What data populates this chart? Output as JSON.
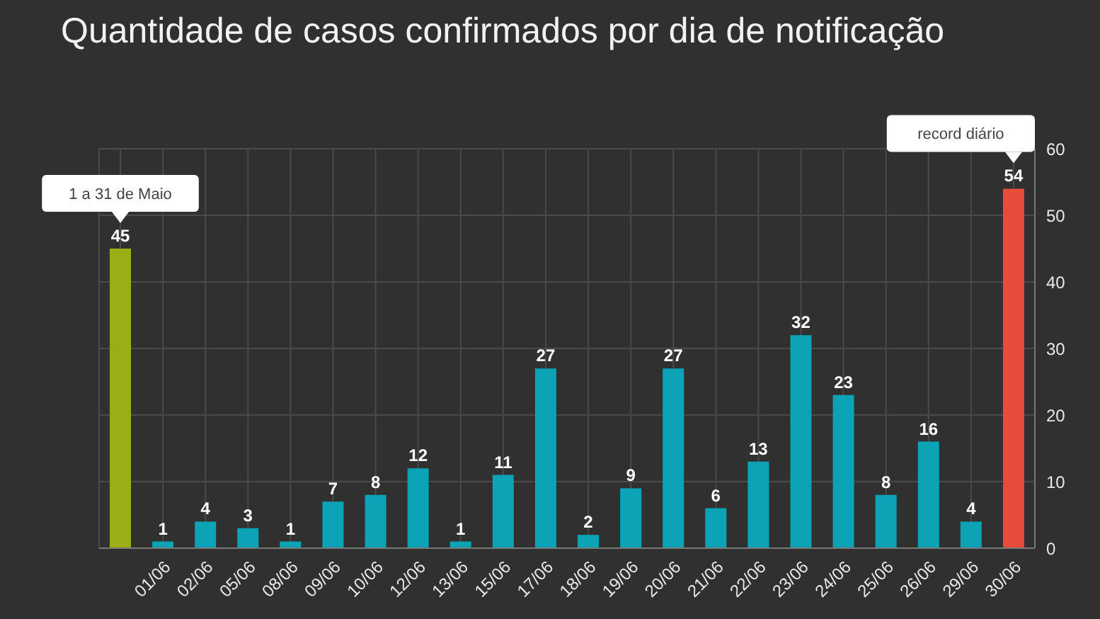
{
  "chart_data": {
    "type": "bar",
    "title": "Quantidade de casos confirmados por dia de notificação",
    "categories": [
      null,
      "01/06",
      "02/06",
      "05/06",
      "08/06",
      "09/06",
      "10/06",
      "12/06",
      "13/06",
      "15/06",
      "17/06",
      "18/06",
      "19/06",
      "20/06",
      "21/06",
      "22/06",
      "23/06",
      "24/06",
      "25/06",
      "26/06",
      "29/06",
      "30/06"
    ],
    "values": [
      45,
      1,
      4,
      3,
      1,
      7,
      8,
      12,
      1,
      11,
      27,
      2,
      9,
      27,
      6,
      13,
      32,
      23,
      8,
      16,
      4,
      54
    ],
    "colors": [
      "#9aae16",
      "#0ba3b5",
      "#0ba3b5",
      "#0ba3b5",
      "#0ba3b5",
      "#0ba3b5",
      "#0ba3b5",
      "#0ba3b5",
      "#0ba3b5",
      "#0ba3b5",
      "#0ba3b5",
      "#0ba3b5",
      "#0ba3b5",
      "#0ba3b5",
      "#0ba3b5",
      "#0ba3b5",
      "#0ba3b5",
      "#0ba3b5",
      "#0ba3b5",
      "#0ba3b5",
      "#0ba3b5",
      "#e84b3c"
    ],
    "ylim": [
      0,
      60
    ],
    "yticks": [
      0,
      10,
      20,
      30,
      40,
      50,
      60
    ],
    "grid": true,
    "data_labels": true,
    "annotations": [
      {
        "text": "1 a 31 de Maio",
        "y": 45
      },
      {
        "text": "record diário",
        "x": "30/06",
        "y": 54
      }
    ]
  }
}
